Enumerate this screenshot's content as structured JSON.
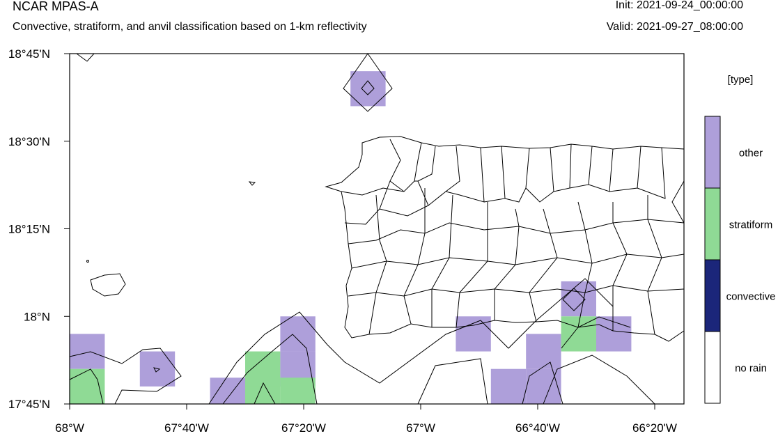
{
  "header": {
    "title": "NCAR MPAS-A",
    "subtitle": "Convective, stratiform, and anvil classification based on 1-km reflectivity",
    "init": "Init: 2021-09-24_00:00:00",
    "valid": "Valid: 2021-09-27_08:00:00"
  },
  "axes": {
    "lat_ticks": [
      {
        "label": "18°45'N",
        "value": 18.75
      },
      {
        "label": "18°30'N",
        "value": 18.5
      },
      {
        "label": "18°15'N",
        "value": 18.25
      },
      {
        "label": "18°N",
        "value": 18.0
      },
      {
        "label": "17°45'N",
        "value": 17.75
      }
    ],
    "lon_ticks": [
      {
        "label": "68°W",
        "value": -68.0
      },
      {
        "label": "67°40'W",
        "value": -67.6667
      },
      {
        "label": "67°20'W",
        "value": -67.3333
      },
      {
        "label": "67°W",
        "value": -67.0
      },
      {
        "label": "66°40'W",
        "value": -66.6667
      },
      {
        "label": "66°20'W",
        "value": -66.3333
      }
    ]
  },
  "legend": {
    "title": "[type]",
    "items": [
      {
        "label": "other",
        "color": "#ae9fda"
      },
      {
        "label": "stratiform",
        "color": "#8fda95"
      },
      {
        "label": "convective",
        "color": "#1b267a"
      },
      {
        "label": "no rain",
        "color": "#ffffff"
      }
    ]
  },
  "chart_data": {
    "type": "heatmap",
    "lat_range": [
      17.75,
      18.75
    ],
    "lon_range": [
      -68.0,
      -66.25
    ],
    "classes": [
      "no rain",
      "convective",
      "stratiform",
      "other"
    ],
    "cells": [
      {
        "lon": -67.15,
        "lat": 18.65,
        "class": "other"
      },
      {
        "lon": -67.95,
        "lat": 17.9,
        "class": "other"
      },
      {
        "lon": -67.95,
        "lat": 17.8,
        "class": "stratiform"
      },
      {
        "lon": -67.75,
        "lat": 17.85,
        "class": "other"
      },
      {
        "lon": -67.55,
        "lat": 17.775,
        "class": "other"
      },
      {
        "lon": -67.45,
        "lat": 17.775,
        "class": "stratiform"
      },
      {
        "lon": -67.45,
        "lat": 17.85,
        "class": "stratiform"
      },
      {
        "lon": -67.35,
        "lat": 17.95,
        "class": "other"
      },
      {
        "lon": -67.35,
        "lat": 17.85,
        "class": "other"
      },
      {
        "lon": -67.35,
        "lat": 17.775,
        "class": "stratiform"
      },
      {
        "lon": -66.85,
        "lat": 17.95,
        "class": "other"
      },
      {
        "lon": -66.75,
        "lat": 17.8,
        "class": "other"
      },
      {
        "lon": -66.65,
        "lat": 17.9,
        "class": "other"
      },
      {
        "lon": -66.65,
        "lat": 17.8,
        "class": "other"
      },
      {
        "lon": -66.55,
        "lat": 18.05,
        "class": "other"
      },
      {
        "lon": -66.55,
        "lat": 17.95,
        "class": "stratiform"
      },
      {
        "lon": -66.45,
        "lat": 17.95,
        "class": "other"
      }
    ]
  }
}
